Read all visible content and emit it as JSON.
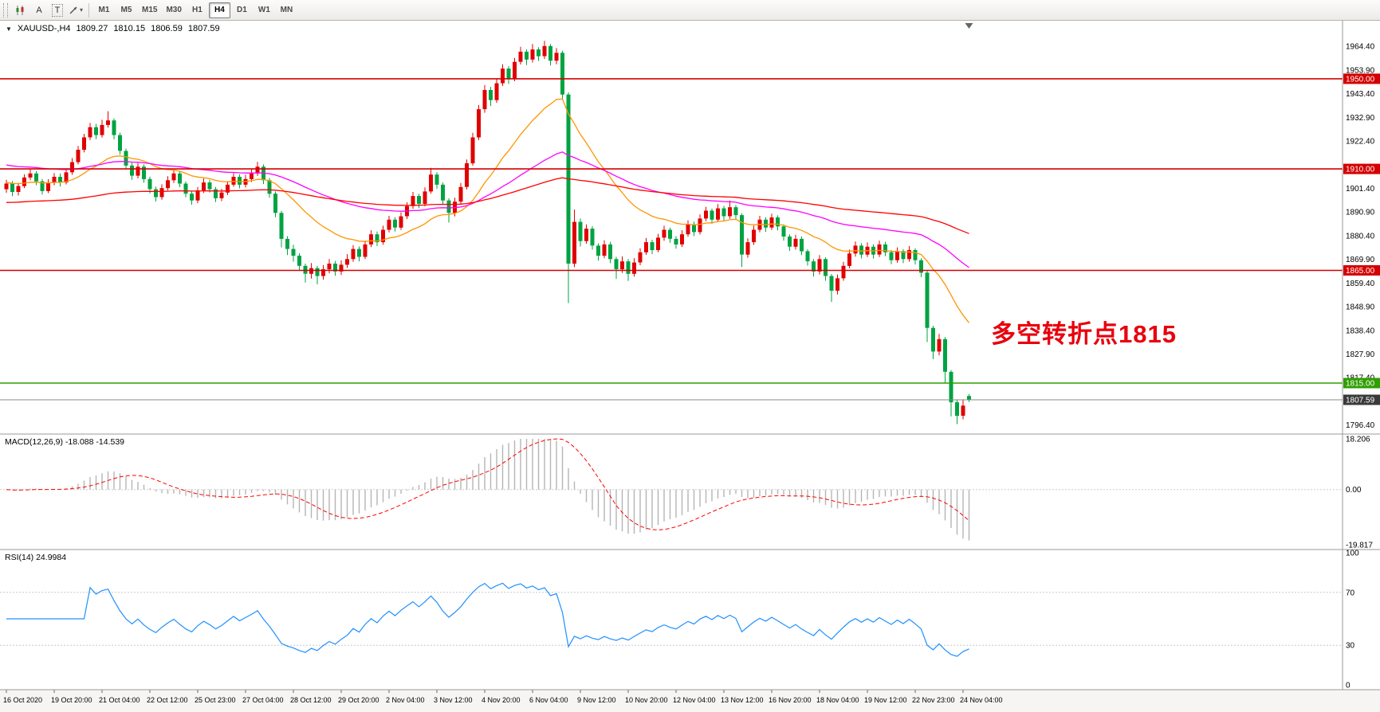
{
  "toolbar": {
    "a_label": "A",
    "t_label": "T",
    "timeframes": [
      "M1",
      "M5",
      "M15",
      "M30",
      "H1",
      "H4",
      "D1",
      "W1",
      "MN"
    ],
    "active_timeframe": "H4"
  },
  "icons": {
    "symbol_dropdown": "▼",
    "caret_down": "▾"
  },
  "symbol_line": {
    "symbol": "XAUUSD-,H4",
    "open": "1809.27",
    "high": "1810.15",
    "low": "1806.59",
    "close": "1807.59"
  },
  "colors": {
    "bull": "#e00000",
    "bear": "#00a342",
    "macd_hist": "#b5b5b5",
    "macd_signal": "#ff0000",
    "rsi_line": "#1e90ff",
    "current_tag": "#3a3a3a"
  },
  "chart_data": {
    "type": "candlestick",
    "symbol": "XAUUSD-",
    "timeframe": "H4",
    "last_bar_ohlc": {
      "open": 1809.27,
      "high": 1810.15,
      "low": 1806.59,
      "close": 1807.59
    },
    "annotation": {
      "text": "多空转折点1815",
      "color": "#e8000d"
    },
    "price_axis": {
      "ticks": [
        "1964.40",
        "1953.90",
        "1943.40",
        "1932.90",
        "1922.40",
        "1901.40",
        "1890.90",
        "1880.40",
        "1869.90",
        "1859.40",
        "1848.90",
        "1838.40",
        "1827.90",
        "1817.40",
        "1796.40"
      ]
    },
    "time_labels": [
      "16 Oct 2020",
      "19 Oct 20:00",
      "21 Oct 04:00",
      "22 Oct 12:00",
      "25 Oct 23:00",
      "27 Oct 04:00",
      "28 Oct 12:00",
      "29 Oct 20:00",
      "2 Nov 04:00",
      "3 Nov 12:00",
      "4 Nov 20:00",
      "6 Nov 04:00",
      "9 Nov 12:00",
      "10 Nov 20:00",
      "12 Nov 04:00",
      "13 Nov 12:00",
      "16 Nov 20:00",
      "18 Nov 04:00",
      "19 Nov 12:00",
      "22 Nov 23:00",
      "24 Nov 04:00"
    ],
    "horizontal_lines": [
      {
        "price": 1950.0,
        "label": "1950.00",
        "color": "#d40000"
      },
      {
        "price": 1910.0,
        "label": "1910.00",
        "color": "#d40000"
      },
      {
        "price": 1865.0,
        "label": "1865.00",
        "color": "#d40000"
      },
      {
        "price": 1815.0,
        "label": "1815.00",
        "color": "#2f9e00"
      }
    ],
    "current_price": {
      "value": 1807.59,
      "label": "1807.59"
    },
    "moving_averages": [
      {
        "name": "ma-fast-orange",
        "period": 21,
        "seed": 1904,
        "color": "#ff9500"
      },
      {
        "name": "ma-mid-magenta",
        "period": 62,
        "seed": 1912,
        "color": "#ff00ff"
      },
      {
        "name": "ma-slow-red",
        "period": 144,
        "seed": 1895,
        "color": "#ff0000"
      }
    ],
    "macd": {
      "label": "MACD(12,26,9) -18.088 -14.539",
      "fast": 12,
      "slow": 26,
      "signal": 9,
      "values_shown": {
        "main": -18.088,
        "signal": -14.539
      },
      "axis_labels": [
        "18.206",
        "0.00",
        "-19.817"
      ],
      "scale_max": 18.206,
      "scale_min": -19.817
    },
    "rsi": {
      "label": "RSI(14) 24.9984",
      "period": 14,
      "value_shown": 24.9984,
      "axis_labels": [
        "100",
        "70",
        "30",
        "0"
      ],
      "levels": [
        70,
        30
      ]
    },
    "candles": [
      [
        1901.0,
        1905.2,
        1899.4,
        1903.5
      ],
      [
        1903.5,
        1904.6,
        1897.9,
        1899.8
      ],
      [
        1899.8,
        1903.8,
        1898.2,
        1902.4
      ],
      [
        1902.4,
        1907.6,
        1901.5,
        1906.2
      ],
      [
        1906.2,
        1910.0,
        1905.0,
        1908.0
      ],
      [
        1908.0,
        1909.1,
        1902.8,
        1904.5
      ],
      [
        1904.5,
        1905.5,
        1898.6,
        1900.2
      ],
      [
        1900.2,
        1905.4,
        1899.3,
        1903.8
      ],
      [
        1903.8,
        1908.2,
        1902.7,
        1906.5
      ],
      [
        1906.5,
        1908.0,
        1902.2,
        1904.0
      ],
      [
        1904.0,
        1910.2,
        1903.1,
        1908.5
      ],
      [
        1908.5,
        1914.8,
        1907.4,
        1913.0
      ],
      [
        1913.0,
        1920.2,
        1912.0,
        1918.5
      ],
      [
        1918.5,
        1925.6,
        1917.3,
        1924.0
      ],
      [
        1924.0,
        1930.4,
        1922.8,
        1928.5
      ],
      [
        1928.5,
        1930.0,
        1923.2,
        1925.0
      ],
      [
        1925.0,
        1931.8,
        1923.9,
        1929.5
      ],
      [
        1929.5,
        1935.6,
        1928.3,
        1931.5
      ],
      [
        1931.5,
        1932.4,
        1923.1,
        1925.0
      ],
      [
        1925.0,
        1926.0,
        1916.4,
        1918.0
      ],
      [
        1918.0,
        1919.0,
        1910.0,
        1911.5
      ],
      [
        1911.5,
        1912.8,
        1905.2,
        1907.0
      ],
      [
        1907.0,
        1912.6,
        1905.8,
        1911.0
      ],
      [
        1911.0,
        1912.0,
        1903.9,
        1905.5
      ],
      [
        1905.5,
        1906.6,
        1899.2,
        1901.0
      ],
      [
        1901.0,
        1902.2,
        1895.6,
        1897.5
      ],
      [
        1897.5,
        1903.2,
        1896.3,
        1901.5
      ],
      [
        1901.5,
        1906.8,
        1900.4,
        1905.0
      ],
      [
        1905.0,
        1909.6,
        1903.8,
        1908.0
      ],
      [
        1908.0,
        1909.0,
        1901.9,
        1903.5
      ],
      [
        1903.5,
        1904.4,
        1897.4,
        1899.0
      ],
      [
        1899.0,
        1900.2,
        1894.1,
        1896.0
      ],
      [
        1896.0,
        1902.0,
        1894.8,
        1900.5
      ],
      [
        1900.5,
        1905.8,
        1899.3,
        1904.0
      ],
      [
        1904.0,
        1905.2,
        1899.5,
        1901.0
      ],
      [
        1901.0,
        1902.0,
        1895.3,
        1897.0
      ],
      [
        1897.0,
        1901.2,
        1895.7,
        1899.5
      ],
      [
        1899.5,
        1904.6,
        1898.4,
        1903.0
      ],
      [
        1903.0,
        1908.2,
        1902.1,
        1906.5
      ],
      [
        1906.5,
        1907.6,
        1901.4,
        1903.0
      ],
      [
        1903.0,
        1907.4,
        1901.8,
        1905.5
      ],
      [
        1905.5,
        1909.8,
        1904.2,
        1908.0
      ],
      [
        1908.0,
        1913.2,
        1906.9,
        1911.0
      ],
      [
        1911.0,
        1912.0,
        1903.3,
        1905.0
      ],
      [
        1905.0,
        1906.0,
        1897.2,
        1899.0
      ],
      [
        1899.0,
        1900.0,
        1888.6,
        1890.5
      ],
      [
        1890.5,
        1891.4,
        1875.2,
        1879.0
      ],
      [
        1879.0,
        1880.2,
        1871.8,
        1874.5
      ],
      [
        1874.5,
        1876.4,
        1868.9,
        1871.5
      ],
      [
        1871.5,
        1872.6,
        1864.8,
        1867.0
      ],
      [
        1867.0,
        1868.0,
        1859.6,
        1863.5
      ],
      [
        1863.5,
        1868.2,
        1861.4,
        1866.0
      ],
      [
        1866.0,
        1867.0,
        1858.8,
        1862.5
      ],
      [
        1862.5,
        1867.4,
        1860.9,
        1865.5
      ],
      [
        1865.5,
        1870.0,
        1863.7,
        1868.0
      ],
      [
        1868.0,
        1869.2,
        1862.6,
        1864.5
      ],
      [
        1864.5,
        1869.4,
        1863.0,
        1867.5
      ],
      [
        1867.5,
        1872.2,
        1866.1,
        1870.0
      ],
      [
        1870.0,
        1876.2,
        1868.8,
        1874.5
      ],
      [
        1874.5,
        1875.6,
        1869.0,
        1871.0
      ],
      [
        1871.0,
        1878.2,
        1870.0,
        1876.5
      ],
      [
        1876.5,
        1882.8,
        1875.3,
        1881.0
      ],
      [
        1881.0,
        1882.2,
        1875.8,
        1877.5
      ],
      [
        1877.5,
        1884.8,
        1876.4,
        1883.0
      ],
      [
        1883.0,
        1889.2,
        1881.9,
        1887.5
      ],
      [
        1887.5,
        1888.6,
        1882.2,
        1884.0
      ],
      [
        1884.0,
        1890.8,
        1882.9,
        1889.0
      ],
      [
        1889.0,
        1895.2,
        1887.8,
        1893.5
      ],
      [
        1893.5,
        1899.8,
        1892.3,
        1898.0
      ],
      [
        1898.0,
        1899.0,
        1892.6,
        1894.5
      ],
      [
        1894.5,
        1901.8,
        1893.4,
        1900.0
      ],
      [
        1900.0,
        1910.5,
        1899.0,
        1907.5
      ],
      [
        1907.5,
        1908.6,
        1901.2,
        1903.0
      ],
      [
        1903.0,
        1904.0,
        1894.1,
        1896.0
      ],
      [
        1896.0,
        1897.0,
        1886.2,
        1890.5
      ],
      [
        1890.5,
        1897.2,
        1888.9,
        1895.5
      ],
      [
        1895.5,
        1903.8,
        1894.3,
        1902.0
      ],
      [
        1902.0,
        1914.2,
        1900.9,
        1912.5
      ],
      [
        1912.5,
        1926.0,
        1911.4,
        1924.0
      ],
      [
        1924.0,
        1938.4,
        1922.8,
        1936.5
      ],
      [
        1936.5,
        1947.2,
        1934.9,
        1945.0
      ],
      [
        1945.0,
        1946.4,
        1937.9,
        1940.5
      ],
      [
        1940.5,
        1950.2,
        1939.3,
        1948.0
      ],
      [
        1948.0,
        1956.4,
        1946.8,
        1954.5
      ],
      [
        1954.5,
        1955.6,
        1947.7,
        1950.0
      ],
      [
        1950.0,
        1959.2,
        1948.9,
        1957.5
      ],
      [
        1957.5,
        1964.2,
        1956.3,
        1962.0
      ],
      [
        1962.0,
        1963.0,
        1956.1,
        1958.5
      ],
      [
        1958.5,
        1965.4,
        1957.2,
        1963.0
      ],
      [
        1963.0,
        1964.0,
        1957.9,
        1960.0
      ],
      [
        1960.0,
        1966.8,
        1958.8,
        1964.5
      ],
      [
        1964.5,
        1965.4,
        1955.9,
        1958.0
      ],
      [
        1958.0,
        1963.6,
        1956.4,
        1961.5
      ],
      [
        1961.5,
        1962.4,
        1940.6,
        1943.0
      ],
      [
        1943.0,
        1944.0,
        1850.5,
        1868.0
      ],
      [
        1868.0,
        1892.0,
        1866.4,
        1886.5
      ],
      [
        1886.5,
        1888.0,
        1875.6,
        1878.0
      ],
      [
        1878.0,
        1885.4,
        1876.8,
        1883.5
      ],
      [
        1883.5,
        1884.6,
        1874.2,
        1876.0
      ],
      [
        1876.0,
        1877.0,
        1869.3,
        1871.5
      ],
      [
        1871.5,
        1878.4,
        1870.4,
        1876.5
      ],
      [
        1876.5,
        1877.6,
        1868.2,
        1870.0
      ],
      [
        1870.0,
        1871.0,
        1861.2,
        1865.5
      ],
      [
        1865.5,
        1871.2,
        1863.9,
        1869.0
      ],
      [
        1869.0,
        1870.0,
        1860.3,
        1863.5
      ],
      [
        1863.5,
        1870.4,
        1862.2,
        1868.5
      ],
      [
        1868.5,
        1874.8,
        1867.3,
        1873.0
      ],
      [
        1873.0,
        1879.4,
        1871.9,
        1877.5
      ],
      [
        1877.5,
        1878.6,
        1872.2,
        1874.0
      ],
      [
        1874.0,
        1881.2,
        1873.0,
        1879.5
      ],
      [
        1879.5,
        1884.8,
        1878.1,
        1883.0
      ],
      [
        1883.0,
        1884.0,
        1877.3,
        1879.0
      ],
      [
        1879.0,
        1880.2,
        1874.6,
        1876.5
      ],
      [
        1876.5,
        1882.8,
        1875.4,
        1881.0
      ],
      [
        1881.0,
        1887.2,
        1879.9,
        1885.5
      ],
      [
        1885.5,
        1886.6,
        1880.2,
        1882.0
      ],
      [
        1882.0,
        1889.8,
        1880.9,
        1888.0
      ],
      [
        1888.0,
        1893.2,
        1886.8,
        1891.5
      ],
      [
        1891.5,
        1892.4,
        1885.7,
        1887.5
      ],
      [
        1887.5,
        1894.4,
        1886.4,
        1892.5
      ],
      [
        1892.5,
        1893.6,
        1887.1,
        1889.0
      ],
      [
        1889.0,
        1896.0,
        1887.9,
        1893.0
      ],
      [
        1893.0,
        1894.0,
        1887.6,
        1889.5
      ],
      [
        1889.5,
        1890.4,
        1866.5,
        1872.0
      ],
      [
        1872.0,
        1879.2,
        1870.6,
        1877.5
      ],
      [
        1877.5,
        1884.8,
        1876.3,
        1883.0
      ],
      [
        1883.0,
        1889.2,
        1881.9,
        1887.5
      ],
      [
        1887.5,
        1888.6,
        1882.1,
        1884.0
      ],
      [
        1884.0,
        1890.2,
        1882.9,
        1888.5
      ],
      [
        1888.5,
        1889.4,
        1882.7,
        1884.5
      ],
      [
        1884.5,
        1885.4,
        1878.2,
        1880.0
      ],
      [
        1880.0,
        1881.0,
        1873.6,
        1875.5
      ],
      [
        1875.5,
        1880.8,
        1874.2,
        1879.0
      ],
      [
        1879.0,
        1880.0,
        1871.8,
        1873.5
      ],
      [
        1873.5,
        1874.4,
        1867.1,
        1869.0
      ],
      [
        1869.0,
        1870.0,
        1862.3,
        1864.5
      ],
      [
        1864.5,
        1871.8,
        1863.2,
        1870.0
      ],
      [
        1870.0,
        1870.8,
        1860.4,
        1862.5
      ],
      [
        1862.5,
        1863.4,
        1851.0,
        1856.0
      ],
      [
        1856.0,
        1863.2,
        1854.3,
        1861.5
      ],
      [
        1861.5,
        1868.8,
        1860.4,
        1867.0
      ],
      [
        1867.0,
        1874.2,
        1865.9,
        1872.5
      ],
      [
        1872.5,
        1877.8,
        1871.1,
        1876.0
      ],
      [
        1876.0,
        1877.0,
        1870.3,
        1872.0
      ],
      [
        1872.0,
        1877.4,
        1870.9,
        1875.5
      ],
      [
        1875.5,
        1876.6,
        1870.2,
        1872.0
      ],
      [
        1872.0,
        1878.2,
        1870.9,
        1876.5
      ],
      [
        1876.5,
        1877.6,
        1871.3,
        1873.0
      ],
      [
        1873.0,
        1874.0,
        1867.7,
        1869.5
      ],
      [
        1869.5,
        1875.2,
        1868.4,
        1873.5
      ],
      [
        1873.5,
        1874.4,
        1868.2,
        1870.0
      ],
      [
        1870.0,
        1875.8,
        1868.9,
        1874.0
      ],
      [
        1874.0,
        1874.8,
        1867.6,
        1869.5
      ],
      [
        1869.5,
        1870.4,
        1862.0,
        1864.0
      ],
      [
        1864.0,
        1864.8,
        1833.2,
        1839.5
      ],
      [
        1839.5,
        1840.4,
        1825.6,
        1829.0
      ],
      [
        1829.0,
        1836.8,
        1827.3,
        1834.5
      ],
      [
        1834.5,
        1835.4,
        1815.2,
        1820.0
      ],
      [
        1820.0,
        1820.8,
        1800.2,
        1806.5
      ],
      [
        1806.5,
        1807.6,
        1796.8,
        1800.5
      ],
      [
        1800.5,
        1807.8,
        1798.9,
        1805.0
      ],
      [
        1809.27,
        1810.15,
        1806.59,
        1807.59
      ]
    ]
  }
}
